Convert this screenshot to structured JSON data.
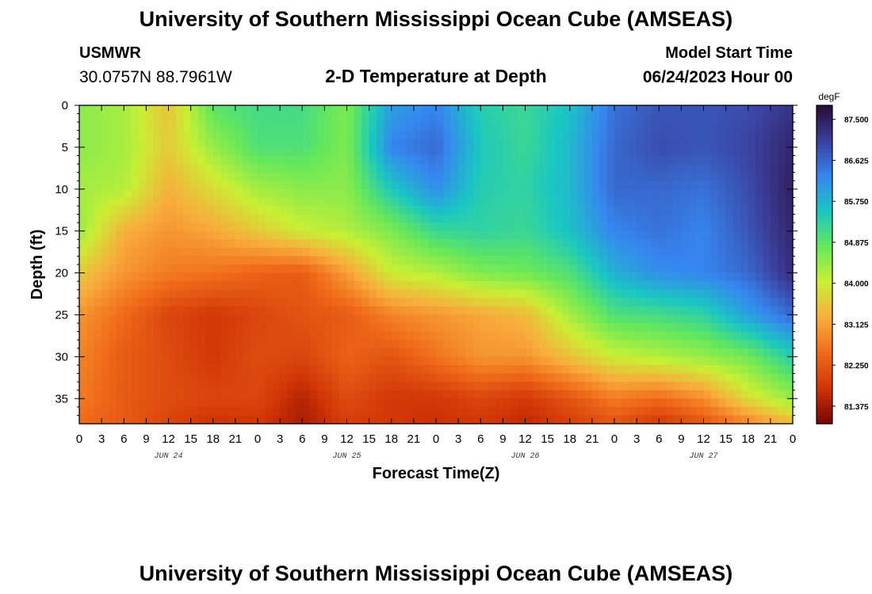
{
  "header": {
    "title": "University of Southern Mississippi Ocean Cube (AMSEAS)",
    "station": "USMWR",
    "coords": "30.0757N  88.7961W",
    "subtitle": "2-D Temperature at Depth",
    "model_start_label": "Model Start Time",
    "model_start_value": "06/24/2023 Hour 00"
  },
  "footer": {
    "title": "University of Southern Mississippi Ocean Cube (AMSEAS)"
  },
  "chart_data": {
    "type": "heatmap",
    "title": "2-D Temperature at Depth",
    "xlabel": "Forecast Time(Z)",
    "ylabel": "Depth (ft)",
    "x_range_hours": [
      0,
      96
    ],
    "x_tick_labels": [
      "0",
      "3",
      "6",
      "9",
      "12",
      "15",
      "18",
      "21",
      "0",
      "3",
      "6",
      "9",
      "12",
      "15",
      "18",
      "21",
      "0",
      "3",
      "6",
      "9",
      "12",
      "15",
      "18",
      "21",
      "0",
      "3",
      "6",
      "9",
      "12",
      "15",
      "18",
      "21",
      "0"
    ],
    "day_labels": [
      {
        "label": "JUN 24",
        "hour": 12
      },
      {
        "label": "JUN 25",
        "hour": 36
      },
      {
        "label": "JUN 26",
        "hour": 60
      },
      {
        "label": "JUN 27",
        "hour": 84
      }
    ],
    "y_range_ft": [
      0,
      38
    ],
    "y_ticks": [
      "0",
      "5",
      "10",
      "15",
      "20",
      "25",
      "30",
      "35"
    ],
    "colorbar": {
      "unit": "degF",
      "min": 81.0,
      "max": 87.8,
      "labels": [
        "87.500",
        "86.625",
        "85.750",
        "84.875",
        "84.000",
        "83.125",
        "82.250",
        "81.375"
      ],
      "colors": [
        "#2a0b35",
        "#3b3f9c",
        "#3686f0",
        "#1ac7c2",
        "#66e85a",
        "#c9ef34",
        "#f8ad3c",
        "#f06a1a",
        "#cf3406",
        "#7a0403"
      ]
    },
    "hours": [
      0,
      6,
      12,
      18,
      24,
      30,
      36,
      42,
      48,
      54,
      60,
      66,
      72,
      78,
      84,
      90,
      96
    ],
    "depths_ft": [
      0,
      5,
      10,
      15,
      20,
      25,
      30,
      35,
      38
    ],
    "temperature_degF": [
      [
        84.5,
        84.3,
        83.5,
        84.9,
        85.1,
        85.1,
        84.6,
        86.0,
        86.3,
        85.4,
        85.2,
        85.6,
        86.5,
        86.8,
        86.8,
        86.9,
        87.2
      ],
      [
        84.5,
        84.3,
        83.6,
        84.4,
        85.0,
        85.0,
        84.6,
        86.3,
        86.6,
        85.5,
        85.2,
        85.7,
        86.6,
        86.9,
        86.8,
        87.0,
        87.4
      ],
      [
        84.3,
        84.2,
        83.3,
        83.8,
        84.3,
        84.5,
        84.5,
        85.5,
        86.2,
        85.4,
        85.3,
        85.7,
        86.6,
        86.6,
        86.5,
        86.9,
        87.5
      ],
      [
        84.4,
        83.3,
        83.0,
        83.2,
        83.6,
        84.0,
        84.2,
        84.6,
        85.2,
        85.3,
        85.2,
        85.6,
        86.3,
        86.5,
        86.3,
        86.8,
        87.4
      ],
      [
        83.6,
        83.0,
        82.7,
        82.6,
        82.4,
        82.3,
        83.1,
        84.0,
        84.2,
        84.6,
        84.7,
        85.0,
        85.8,
        86.2,
        86.3,
        86.6,
        87.3
      ],
      [
        83.0,
        82.5,
        82.0,
        81.8,
        82.0,
        82.2,
        82.3,
        82.8,
        83.0,
        83.2,
        83.4,
        84.3,
        85.0,
        85.1,
        85.3,
        86.0,
        86.6
      ],
      [
        82.8,
        82.3,
        82.1,
        81.8,
        82.1,
        82.0,
        82.4,
        82.2,
        82.6,
        83.0,
        83.0,
        83.5,
        84.0,
        84.2,
        84.4,
        84.7,
        85.4
      ],
      [
        82.7,
        82.3,
        82.1,
        82.0,
        82.0,
        81.5,
        82.1,
        81.8,
        81.8,
        82.0,
        81.8,
        82.2,
        82.7,
        82.5,
        82.9,
        83.8,
        84.4
      ],
      [
        82.5,
        82.3,
        82.0,
        81.7,
        81.8,
        81.4,
        81.9,
        81.8,
        81.7,
        81.8,
        81.6,
        81.9,
        82.2,
        81.8,
        82.2,
        82.8,
        83.4
      ]
    ]
  }
}
